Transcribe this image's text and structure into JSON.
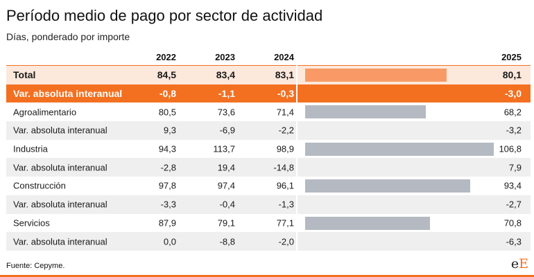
{
  "title": "Período medio de pago por sector de actividad",
  "subtitle": "Días, ponderado por importe",
  "headers": [
    "2022",
    "2023",
    "2024",
    "2025"
  ],
  "source": "Fuente: Cepyme.",
  "logo": {
    "e": "e",
    "E": "E"
  },
  "colors": {
    "accent": "#f37021",
    "total_bar": "#f99a66",
    "sector_bar": "#b4b9c2"
  },
  "chart_data": {
    "type": "table",
    "columns": [
      "2022",
      "2023",
      "2024",
      "2025"
    ],
    "bar_column": "2025",
    "bar_max": 106.8,
    "rows": [
      {
        "label": "Total",
        "v2022": "84,5",
        "v2023": "83,4",
        "v2024": "83,1",
        "v2025": "80,1",
        "bar": 80.1,
        "style": "total"
      },
      {
        "label": "Var. absoluta interanual",
        "v2022": "-0,8",
        "v2023": "-1,1",
        "v2024": "-0,3",
        "v2025": "-3,0",
        "bar": null,
        "style": "totalvar"
      },
      {
        "label": "Agroalimentario",
        "v2022": "80,5",
        "v2023": "73,6",
        "v2024": "71,4",
        "v2025": "68,2",
        "bar": 68.2,
        "style": "sector"
      },
      {
        "label": "Var. absoluta interanual",
        "v2022": "9,3",
        "v2023": "-6,9",
        "v2024": "-2,2",
        "v2025": "-3,2",
        "bar": null,
        "style": "var"
      },
      {
        "label": "Industria",
        "v2022": "94,3",
        "v2023": "113,7",
        "v2024": "98,9",
        "v2025": "106,8",
        "bar": 106.8,
        "style": "sector"
      },
      {
        "label": "Var. absoluta interanual",
        "v2022": "-2,8",
        "v2023": "19,4",
        "v2024": "-14,8",
        "v2025": "7,9",
        "bar": null,
        "style": "var"
      },
      {
        "label": "Construcción",
        "v2022": "97,8",
        "v2023": "97,4",
        "v2024": "96,1",
        "v2025": "93,4",
        "bar": 93.4,
        "style": "sector"
      },
      {
        "label": "Var. absoluta interanual",
        "v2022": "-3,3",
        "v2023": "-0,4",
        "v2024": "-1,3",
        "v2025": "-2,7",
        "bar": null,
        "style": "var"
      },
      {
        "label": "Servicios",
        "v2022": "87,9",
        "v2023": "79,1",
        "v2024": "77,1",
        "v2025": "70,8",
        "bar": 70.8,
        "style": "sector"
      },
      {
        "label": "Var. absoluta interanual",
        "v2022": "0,0",
        "v2023": "-8,8",
        "v2024": "-2,0",
        "v2025": "-6,3",
        "bar": null,
        "style": "var"
      }
    ]
  }
}
